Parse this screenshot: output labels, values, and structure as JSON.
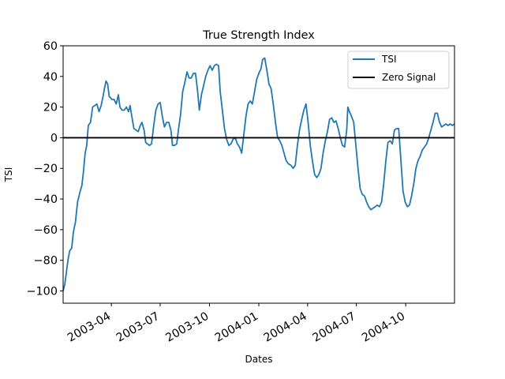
{
  "chart_data": {
    "type": "line",
    "title": "True Strength Index",
    "xlabel": "Dates",
    "ylabel": "TSI",
    "xlim": [
      "2003-01-01",
      "2004-12-31"
    ],
    "ylim": [
      -108,
      60
    ],
    "yticks": [
      -100,
      -80,
      -60,
      -40,
      -20,
      0,
      20,
      40,
      60
    ],
    "xticks": [
      "2003-04",
      "2003-07",
      "2003-10",
      "2004-01",
      "2004-04",
      "2004-07",
      "2004-10"
    ],
    "grid": false,
    "legend_position": "top-right",
    "series": [
      {
        "name": "TSI",
        "color": "#1f77b4",
        "points": [
          [
            "2003-01-01",
            -100
          ],
          [
            "2003-01-04",
            -96
          ],
          [
            "2003-01-07",
            -88
          ],
          [
            "2003-01-10",
            -80
          ],
          [
            "2003-01-13",
            -74
          ],
          [
            "2003-01-17",
            -72
          ],
          [
            "2003-01-20",
            -62
          ],
          [
            "2003-01-24",
            -55
          ],
          [
            "2003-01-28",
            -42
          ],
          [
            "2003-02-01",
            -36
          ],
          [
            "2003-02-05",
            -31
          ],
          [
            "2003-02-08",
            -22
          ],
          [
            "2003-02-11",
            -10
          ],
          [
            "2003-02-14",
            -5
          ],
          [
            "2003-02-17",
            8
          ],
          [
            "2003-02-21",
            10
          ],
          [
            "2003-02-25",
            20
          ],
          [
            "2003-03-01",
            21
          ],
          [
            "2003-03-05",
            22
          ],
          [
            "2003-03-09",
            17
          ],
          [
            "2003-03-13",
            21
          ],
          [
            "2003-03-17",
            28
          ],
          [
            "2003-03-19",
            32
          ],
          [
            "2003-03-22",
            37
          ],
          [
            "2003-03-25",
            35
          ],
          [
            "2003-03-28",
            27
          ],
          [
            "2003-04-02",
            25
          ],
          [
            "2003-04-06",
            25
          ],
          [
            "2003-04-10",
            22
          ],
          [
            "2003-04-14",
            28
          ],
          [
            "2003-04-17",
            20
          ],
          [
            "2003-04-21",
            18
          ],
          [
            "2003-04-25",
            18
          ],
          [
            "2003-04-29",
            20
          ],
          [
            "2003-05-03",
            17
          ],
          [
            "2003-05-06",
            21
          ],
          [
            "2003-05-09",
            14
          ],
          [
            "2003-05-13",
            6
          ],
          [
            "2003-05-17",
            5
          ],
          [
            "2003-05-21",
            4
          ],
          [
            "2003-05-25",
            8
          ],
          [
            "2003-05-28",
            10
          ],
          [
            "2003-06-01",
            5
          ],
          [
            "2003-06-04",
            -3
          ],
          [
            "2003-06-07",
            -4
          ],
          [
            "2003-06-11",
            -5
          ],
          [
            "2003-06-15",
            -4
          ],
          [
            "2003-06-19",
            8
          ],
          [
            "2003-06-23",
            18
          ],
          [
            "2003-06-27",
            22
          ],
          [
            "2003-07-01",
            23
          ],
          [
            "2003-07-05",
            14
          ],
          [
            "2003-07-09",
            7
          ],
          [
            "2003-07-13",
            10
          ],
          [
            "2003-07-17",
            10
          ],
          [
            "2003-07-21",
            5
          ],
          [
            "2003-07-24",
            -5
          ],
          [
            "2003-07-28",
            -5
          ],
          [
            "2003-08-01",
            -4
          ],
          [
            "2003-08-04",
            5
          ],
          [
            "2003-08-08",
            15
          ],
          [
            "2003-08-12",
            30
          ],
          [
            "2003-08-16",
            36
          ],
          [
            "2003-08-20",
            43
          ],
          [
            "2003-08-24",
            39
          ],
          [
            "2003-08-28",
            39
          ],
          [
            "2003-09-01",
            42
          ],
          [
            "2003-09-05",
            42
          ],
          [
            "2003-09-09",
            30
          ],
          [
            "2003-09-12",
            18
          ],
          [
            "2003-09-16",
            28
          ],
          [
            "2003-09-20",
            34
          ],
          [
            "2003-09-24",
            40
          ],
          [
            "2003-09-28",
            44
          ],
          [
            "2003-10-02",
            47
          ],
          [
            "2003-10-06",
            44
          ],
          [
            "2003-10-10",
            47
          ],
          [
            "2003-10-14",
            48
          ],
          [
            "2003-10-18",
            47
          ],
          [
            "2003-10-21",
            30
          ],
          [
            "2003-10-25",
            18
          ],
          [
            "2003-10-29",
            6
          ],
          [
            "2003-11-02",
            -1
          ],
          [
            "2003-11-06",
            -5
          ],
          [
            "2003-11-10",
            -4
          ],
          [
            "2003-11-14",
            -1
          ],
          [
            "2003-11-18",
            0
          ],
          [
            "2003-11-22",
            -4
          ],
          [
            "2003-11-26",
            -6
          ],
          [
            "2003-11-30",
            -10
          ],
          [
            "2003-12-04",
            2
          ],
          [
            "2003-12-08",
            14
          ],
          [
            "2003-12-12",
            22
          ],
          [
            "2003-12-16",
            24
          ],
          [
            "2003-12-20",
            22
          ],
          [
            "2003-12-24",
            30
          ],
          [
            "2003-12-28",
            38
          ],
          [
            "2004-01-01",
            42
          ],
          [
            "2004-01-05",
            45
          ],
          [
            "2004-01-08",
            51
          ],
          [
            "2004-01-12",
            52
          ],
          [
            "2004-01-16",
            44
          ],
          [
            "2004-01-20",
            35
          ],
          [
            "2004-01-24",
            32
          ],
          [
            "2004-01-28",
            22
          ],
          [
            "2004-02-01",
            10
          ],
          [
            "2004-02-05",
            0
          ],
          [
            "2004-02-09",
            -2
          ],
          [
            "2004-02-13",
            -5
          ],
          [
            "2004-02-17",
            -10
          ],
          [
            "2004-02-21",
            -15
          ],
          [
            "2004-02-25",
            -17
          ],
          [
            "2004-03-01",
            -18
          ],
          [
            "2004-03-05",
            -20
          ],
          [
            "2004-03-09",
            -18
          ],
          [
            "2004-03-13",
            -5
          ],
          [
            "2004-03-17",
            5
          ],
          [
            "2004-03-21",
            12
          ],
          [
            "2004-03-25",
            18
          ],
          [
            "2004-03-29",
            22
          ],
          [
            "2004-04-02",
            10
          ],
          [
            "2004-04-06",
            -5
          ],
          [
            "2004-04-10",
            -15
          ],
          [
            "2004-04-14",
            -24
          ],
          [
            "2004-04-18",
            -26
          ],
          [
            "2004-04-22",
            -24
          ],
          [
            "2004-04-26",
            -20
          ],
          [
            "2004-04-30",
            -10
          ],
          [
            "2004-05-04",
            -2
          ],
          [
            "2004-05-08",
            4
          ],
          [
            "2004-05-12",
            12
          ],
          [
            "2004-05-16",
            13
          ],
          [
            "2004-05-20",
            10
          ],
          [
            "2004-05-24",
            11
          ],
          [
            "2004-05-28",
            6
          ],
          [
            "2004-06-01",
            0
          ],
          [
            "2004-06-05",
            -5
          ],
          [
            "2004-06-09",
            -6
          ],
          [
            "2004-06-13",
            5
          ],
          [
            "2004-06-15",
            20
          ],
          [
            "2004-06-18",
            17
          ],
          [
            "2004-06-22",
            14
          ],
          [
            "2004-06-26",
            10
          ],
          [
            "2004-06-30",
            -5
          ],
          [
            "2004-07-04",
            -20
          ],
          [
            "2004-07-08",
            -33
          ],
          [
            "2004-07-12",
            -37
          ],
          [
            "2004-07-16",
            -38
          ],
          [
            "2004-07-20",
            -42
          ],
          [
            "2004-07-24",
            -45
          ],
          [
            "2004-07-28",
            -47
          ],
          [
            "2004-08-01",
            -46
          ],
          [
            "2004-08-05",
            -45
          ],
          [
            "2004-08-09",
            -44
          ],
          [
            "2004-08-13",
            -45
          ],
          [
            "2004-08-17",
            -42
          ],
          [
            "2004-08-21",
            -30
          ],
          [
            "2004-08-25",
            -15
          ],
          [
            "2004-08-29",
            -3
          ],
          [
            "2004-09-02",
            -2
          ],
          [
            "2004-09-06",
            -4
          ],
          [
            "2004-09-10",
            5
          ],
          [
            "2004-09-14",
            6
          ],
          [
            "2004-09-18",
            6
          ],
          [
            "2004-09-22",
            -15
          ],
          [
            "2004-09-26",
            -35
          ],
          [
            "2004-09-30",
            -42
          ],
          [
            "2004-10-04",
            -45
          ],
          [
            "2004-10-08",
            -44
          ],
          [
            "2004-10-12",
            -38
          ],
          [
            "2004-10-16",
            -30
          ],
          [
            "2004-10-20",
            -20
          ],
          [
            "2004-10-24",
            -15
          ],
          [
            "2004-10-28",
            -12
          ],
          [
            "2004-11-01",
            -8
          ],
          [
            "2004-11-05",
            -6
          ],
          [
            "2004-11-09",
            -4
          ],
          [
            "2004-11-13",
            0
          ],
          [
            "2004-11-17",
            5
          ],
          [
            "2004-11-21",
            10
          ],
          [
            "2004-11-25",
            16
          ],
          [
            "2004-11-29",
            16
          ],
          [
            "2004-12-03",
            10
          ],
          [
            "2004-12-07",
            7
          ],
          [
            "2004-12-11",
            8
          ],
          [
            "2004-12-15",
            9
          ],
          [
            "2004-12-19",
            8
          ],
          [
            "2004-12-23",
            9
          ],
          [
            "2004-12-27",
            8
          ],
          [
            "2004-12-31",
            9
          ]
        ]
      },
      {
        "name": "Zero Signal",
        "color": "#000000",
        "constant": 0
      }
    ]
  }
}
